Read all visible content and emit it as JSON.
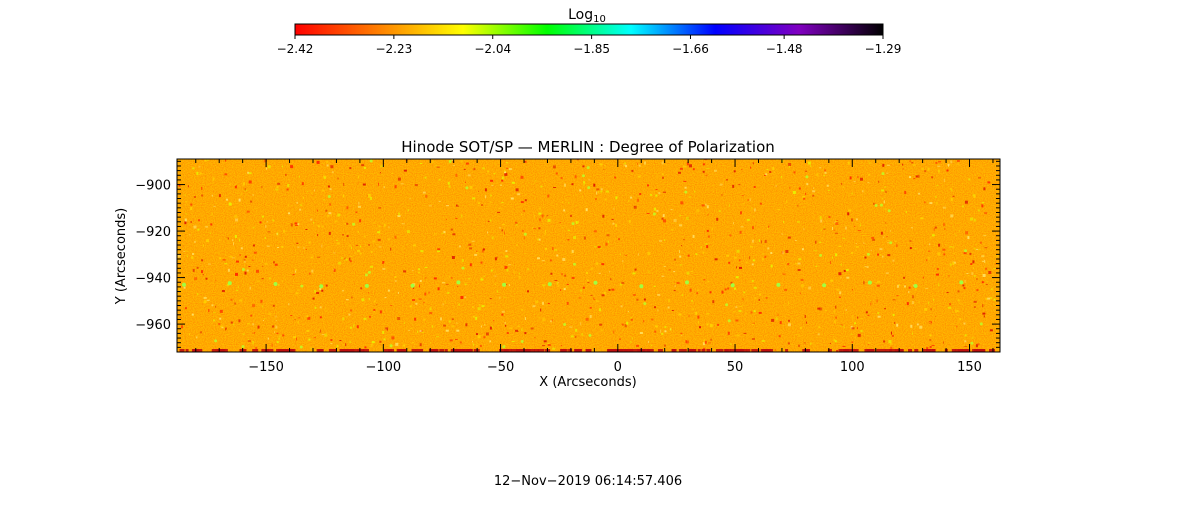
{
  "chart_data": {
    "type": "heatmap",
    "title": "Hinode SOT/SP — MERLIN : Degree of Polarization",
    "xlabel": "X (Arcseconds)",
    "ylabel": "Y (Arcseconds)",
    "xlim": [
      -188,
      163
    ],
    "ylim": [
      -972,
      -889
    ],
    "x_ticks": [
      -150,
      -100,
      -50,
      0,
      50,
      100,
      150
    ],
    "x_tick_labels": [
      "−150",
      "−100",
      "−50",
      "0",
      "50",
      "100",
      "150"
    ],
    "y_ticks": [
      -900,
      -920,
      -940,
      -960
    ],
    "y_tick_labels": [
      "−900",
      "−920",
      "−940",
      "−960"
    ],
    "colorbar": {
      "label_base": "Log",
      "label_sub": "10",
      "range": [
        -2.42,
        -1.29
      ],
      "ticks": [
        -2.42,
        -2.23,
        -2.04,
        -1.85,
        -1.66,
        -1.48,
        -1.29
      ],
      "tick_labels": [
        "−2.42",
        "−2.23",
        "−2.04",
        "−1.85",
        "−1.66",
        "−1.48",
        "−1.29"
      ],
      "colormap": [
        "#ff0000",
        "#ff8000",
        "#ffff00",
        "#00ff00",
        "#00ffff",
        "#0000ff",
        "#8000c0",
        "#000000"
      ]
    },
    "field_typical_log10": -2.28,
    "grid": false,
    "timestamp": "12−Nov−2019 06:14:57.406"
  }
}
